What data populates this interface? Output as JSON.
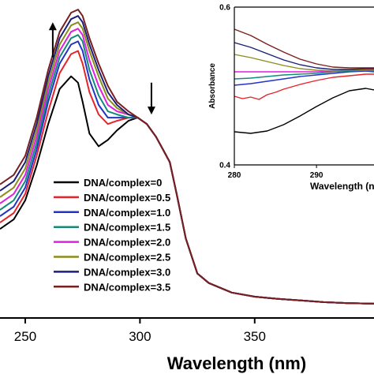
{
  "chart_data": [
    {
      "type": "line",
      "title": "",
      "xlabel": "Wavelength (nm)",
      "ylabel": "",
      "xlim": [
        239,
        402
      ],
      "ylim": [
        0.0,
        1.0
      ],
      "x_ticks": [
        250,
        300,
        350
      ],
      "x_tick_labels": [
        "250",
        "300",
        "350"
      ],
      "grid": false,
      "legend_position": "lower-left",
      "annotations": [
        {
          "kind": "arrow-up",
          "x": 262,
          "from": 0.82,
          "to": 0.93
        },
        {
          "kind": "arrow-down",
          "x": 305,
          "from": 0.74,
          "to": 0.64
        }
      ],
      "series": [
        {
          "name": "DNA/complex=0",
          "color": "#000000",
          "x": [
            239,
            245,
            250,
            255,
            260,
            265,
            270,
            273,
            275,
            278,
            282,
            286,
            290,
            295,
            299,
            303,
            307,
            310,
            313,
            316,
            320,
            325,
            330,
            340,
            350,
            360,
            370,
            380,
            390,
            402
          ],
          "values": [
            0.28,
            0.31,
            0.37,
            0.48,
            0.61,
            0.72,
            0.76,
            0.74,
            0.68,
            0.58,
            0.54,
            0.56,
            0.59,
            0.62,
            0.63,
            0.61,
            0.57,
            0.53,
            0.49,
            0.39,
            0.25,
            0.14,
            0.11,
            0.08,
            0.067,
            0.06,
            0.055,
            0.05,
            0.047,
            0.045
          ]
        },
        {
          "name": "DNA/complex=0.5",
          "color": "#e8242b",
          "x": [
            239,
            245,
            250,
            255,
            260,
            265,
            270,
            273,
            275,
            278,
            282,
            286,
            290,
            295,
            299,
            303,
            307,
            310,
            313,
            316,
            320,
            325,
            330,
            340,
            350,
            360,
            370,
            380,
            390,
            402
          ],
          "values": [
            0.3,
            0.33,
            0.39,
            0.51,
            0.65,
            0.77,
            0.83,
            0.84,
            0.8,
            0.71,
            0.64,
            0.61,
            0.62,
            0.63,
            0.63,
            0.61,
            0.57,
            0.53,
            0.49,
            0.39,
            0.25,
            0.14,
            0.11,
            0.08,
            0.067,
            0.06,
            0.055,
            0.05,
            0.047,
            0.045
          ]
        },
        {
          "name": "DNA/complex=1.0",
          "color": "#2333c8",
          "x": [
            239,
            245,
            250,
            255,
            260,
            265,
            270,
            273,
            275,
            278,
            282,
            286,
            290,
            295,
            299,
            303,
            307,
            310,
            313,
            316,
            320,
            325,
            330,
            340,
            350,
            360,
            370,
            380,
            390,
            402
          ],
          "values": [
            0.32,
            0.35,
            0.41,
            0.53,
            0.68,
            0.8,
            0.86,
            0.87,
            0.84,
            0.75,
            0.67,
            0.63,
            0.63,
            0.63,
            0.63,
            0.61,
            0.57,
            0.53,
            0.49,
            0.39,
            0.25,
            0.14,
            0.11,
            0.08,
            0.067,
            0.06,
            0.055,
            0.05,
            0.047,
            0.045
          ]
        },
        {
          "name": "DNA/complex=1.5",
          "color": "#138a7a",
          "x": [
            239,
            245,
            250,
            255,
            260,
            265,
            270,
            273,
            275,
            278,
            282,
            286,
            290,
            295,
            299,
            303,
            307,
            310,
            313,
            316,
            320,
            325,
            330,
            340,
            350,
            360,
            370,
            380,
            390,
            402
          ],
          "values": [
            0.34,
            0.37,
            0.43,
            0.55,
            0.7,
            0.82,
            0.88,
            0.89,
            0.87,
            0.78,
            0.7,
            0.65,
            0.64,
            0.63,
            0.63,
            0.61,
            0.57,
            0.53,
            0.49,
            0.39,
            0.25,
            0.14,
            0.11,
            0.08,
            0.067,
            0.06,
            0.055,
            0.05,
            0.047,
            0.045
          ]
        },
        {
          "name": "DNA/complex=2.0",
          "color": "#e01fe0",
          "x": [
            239,
            245,
            250,
            255,
            260,
            265,
            270,
            273,
            275,
            278,
            282,
            286,
            290,
            295,
            299,
            303,
            307,
            310,
            313,
            316,
            320,
            325,
            330,
            340,
            350,
            360,
            370,
            380,
            390,
            402
          ],
          "values": [
            0.36,
            0.39,
            0.45,
            0.57,
            0.72,
            0.84,
            0.9,
            0.91,
            0.89,
            0.81,
            0.73,
            0.67,
            0.65,
            0.64,
            0.63,
            0.61,
            0.57,
            0.53,
            0.49,
            0.39,
            0.25,
            0.14,
            0.11,
            0.08,
            0.067,
            0.06,
            0.055,
            0.05,
            0.047,
            0.045
          ]
        },
        {
          "name": "DNA/complex=2.5",
          "color": "#8c8c1a",
          "x": [
            239,
            245,
            250,
            255,
            260,
            265,
            270,
            273,
            275,
            278,
            282,
            286,
            290,
            295,
            299,
            303,
            307,
            310,
            313,
            316,
            320,
            325,
            330,
            340,
            350,
            360,
            370,
            380,
            390,
            402
          ],
          "values": [
            0.38,
            0.41,
            0.47,
            0.59,
            0.74,
            0.86,
            0.92,
            0.93,
            0.91,
            0.84,
            0.76,
            0.69,
            0.66,
            0.64,
            0.63,
            0.61,
            0.57,
            0.53,
            0.49,
            0.39,
            0.25,
            0.14,
            0.11,
            0.08,
            0.067,
            0.06,
            0.055,
            0.05,
            0.047,
            0.045
          ]
        },
        {
          "name": "DNA/complex=3.0",
          "color": "#1a1f7a",
          "x": [
            239,
            245,
            250,
            255,
            260,
            265,
            270,
            273,
            275,
            278,
            282,
            286,
            290,
            295,
            299,
            303,
            307,
            310,
            313,
            316,
            320,
            325,
            330,
            340,
            350,
            360,
            370,
            380,
            390,
            402
          ],
          "values": [
            0.4,
            0.43,
            0.49,
            0.61,
            0.76,
            0.88,
            0.94,
            0.95,
            0.93,
            0.86,
            0.78,
            0.71,
            0.67,
            0.64,
            0.63,
            0.61,
            0.57,
            0.53,
            0.49,
            0.39,
            0.25,
            0.14,
            0.11,
            0.08,
            0.067,
            0.06,
            0.055,
            0.05,
            0.047,
            0.045
          ]
        },
        {
          "name": "DNA/complex=3.5",
          "color": "#7a1f1f",
          "x": [
            239,
            245,
            250,
            255,
            260,
            265,
            270,
            273,
            275,
            278,
            282,
            286,
            290,
            295,
            299,
            303,
            307,
            310,
            313,
            316,
            320,
            325,
            330,
            340,
            350,
            360,
            370,
            380,
            390,
            402
          ],
          "values": [
            0.42,
            0.45,
            0.51,
            0.63,
            0.78,
            0.9,
            0.96,
            0.97,
            0.95,
            0.88,
            0.8,
            0.73,
            0.68,
            0.65,
            0.63,
            0.61,
            0.57,
            0.53,
            0.49,
            0.39,
            0.25,
            0.14,
            0.11,
            0.08,
            0.067,
            0.06,
            0.055,
            0.05,
            0.047,
            0.045
          ]
        }
      ]
    },
    {
      "type": "line",
      "title": "",
      "xlabel": "Wavelength (n",
      "ylabel": "Absorbance",
      "xlim": [
        280,
        297
      ],
      "ylim": [
        0.4,
        0.6
      ],
      "x_ticks": [
        280,
        290
      ],
      "x_tick_labels": [
        "280",
        "290",
        "3"
      ],
      "y_ticks": [
        0.4,
        0.6
      ],
      "y_tick_labels": [
        "0.4",
        "0.6"
      ],
      "grid": false,
      "series": [
        {
          "color": "#000000",
          "x": [
            280,
            282,
            284,
            286,
            288,
            290,
            292,
            294,
            296,
            297
          ],
          "values": [
            0.442,
            0.44,
            0.443,
            0.451,
            0.462,
            0.474,
            0.485,
            0.494,
            0.497,
            0.495
          ]
        },
        {
          "color": "#e8242b",
          "x": [
            280,
            281,
            282,
            283,
            284,
            285,
            286,
            288,
            290,
            292,
            294,
            296,
            297
          ],
          "values": [
            0.487,
            0.484,
            0.486,
            0.483,
            0.489,
            0.492,
            0.496,
            0.502,
            0.507,
            0.511,
            0.513,
            0.515,
            0.515
          ]
        },
        {
          "color": "#2333c8",
          "x": [
            280,
            282,
            284,
            286,
            288,
            290,
            292,
            294,
            296,
            297
          ],
          "values": [
            0.501,
            0.503,
            0.506,
            0.509,
            0.512,
            0.514,
            0.516,
            0.518,
            0.519,
            0.518
          ]
        },
        {
          "color": "#138a7a",
          "x": [
            280,
            282,
            284,
            286,
            288,
            290,
            292,
            294,
            296,
            297
          ],
          "values": [
            0.509,
            0.51,
            0.512,
            0.514,
            0.515,
            0.516,
            0.518,
            0.519,
            0.52,
            0.519
          ]
        },
        {
          "color": "#e01fe0",
          "x": [
            280,
            282,
            284,
            286,
            288,
            290,
            292,
            294,
            296,
            297
          ],
          "values": [
            0.518,
            0.518,
            0.518,
            0.518,
            0.518,
            0.518,
            0.519,
            0.52,
            0.52,
            0.52
          ]
        },
        {
          "color": "#8c8c1a",
          "x": [
            280,
            282,
            284,
            286,
            288,
            290,
            292,
            294,
            296,
            297
          ],
          "values": [
            0.54,
            0.536,
            0.531,
            0.526,
            0.522,
            0.52,
            0.519,
            0.52,
            0.521,
            0.521
          ]
        },
        {
          "color": "#1a1f7a",
          "x": [
            280,
            282,
            284,
            286,
            288,
            290,
            292,
            294,
            296,
            297
          ],
          "values": [
            0.555,
            0.549,
            0.541,
            0.533,
            0.527,
            0.523,
            0.521,
            0.521,
            0.522,
            0.522
          ]
        },
        {
          "color": "#7a1f1f",
          "x": [
            280,
            282,
            284,
            286,
            288,
            290,
            292,
            294,
            296,
            297
          ],
          "values": [
            0.572,
            0.564,
            0.553,
            0.543,
            0.534,
            0.528,
            0.524,
            0.523,
            0.523,
            0.523
          ]
        }
      ]
    }
  ]
}
